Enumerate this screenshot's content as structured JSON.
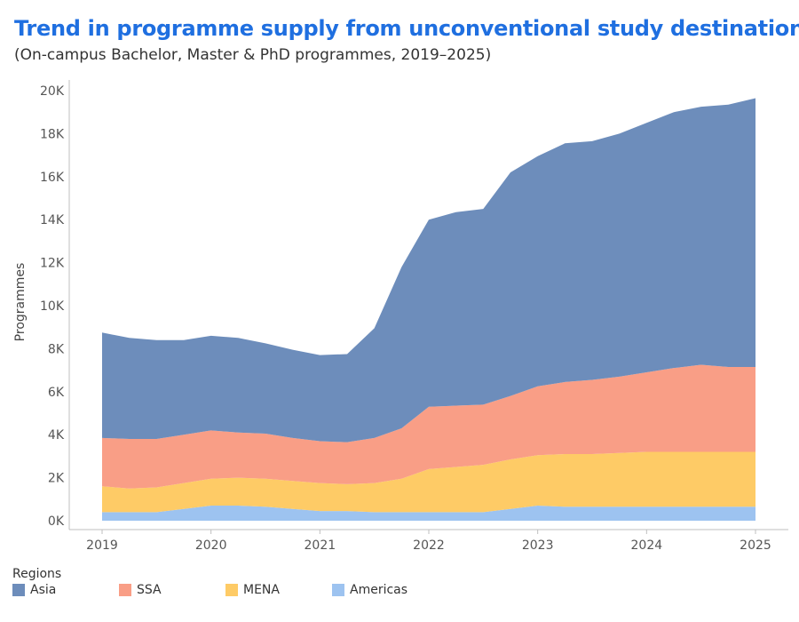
{
  "title": "Trend in programme supply from unconventional study destinations",
  "subtitle": "(On-campus Bachelor, Master & PhD programmes, 2019–2025)",
  "legend_title": "Regions",
  "chart_data": {
    "type": "area",
    "stacked": true,
    "ylabel": "Programmes",
    "ylim": [
      0,
      20000
    ],
    "yticks": [
      0,
      2000,
      4000,
      6000,
      8000,
      10000,
      12000,
      14000,
      16000,
      18000,
      20000
    ],
    "ytick_labels": [
      "0K",
      "2K",
      "4K",
      "6K",
      "8K",
      "10K",
      "12K",
      "14K",
      "16K",
      "18K",
      "20K"
    ],
    "xlim": [
      2019,
      2025
    ],
    "xticks": [
      2019,
      2020,
      2021,
      2022,
      2023,
      2024,
      2025
    ],
    "xtick_labels": [
      "2019",
      "2020",
      "2021",
      "2022",
      "2023",
      "2024",
      "2025"
    ],
    "x": [
      2019,
      2019.25,
      2019.5,
      2019.75,
      2020,
      2020.25,
      2020.5,
      2020.75,
      2021,
      2021.25,
      2021.5,
      2021.75,
      2022,
      2022.25,
      2022.5,
      2022.75,
      2023,
      2023.25,
      2023.5,
      2023.75,
      2024,
      2024.25,
      2024.5,
      2024.75,
      2025
    ],
    "series": [
      {
        "name": "Americas",
        "color": "#9dc3f0",
        "values": [
          400,
          400,
          400,
          550,
          700,
          700,
          650,
          550,
          450,
          450,
          400,
          400,
          400,
          400,
          400,
          550,
          700,
          650,
          650,
          650,
          650,
          650,
          650,
          650,
          650
        ]
      },
      {
        "name": "MENA",
        "color": "#fecb66",
        "values": [
          1200,
          1100,
          1150,
          1200,
          1250,
          1300,
          1300,
          1300,
          1300,
          1250,
          1350,
          1550,
          2000,
          2100,
          2200,
          2300,
          2350,
          2450,
          2450,
          2500,
          2550,
          2550,
          2550,
          2550,
          2550
        ]
      },
      {
        "name": "SSA",
        "color": "#f99e86",
        "values": [
          2250,
          2300,
          2250,
          2250,
          2250,
          2100,
          2100,
          2000,
          1950,
          1950,
          2100,
          2350,
          2900,
          2850,
          2800,
          2950,
          3200,
          3350,
          3450,
          3550,
          3700,
          3900,
          4050,
          3950,
          3950
        ]
      },
      {
        "name": "Asia",
        "color": "#6d8dbb",
        "values": [
          4900,
          4700,
          4600,
          4400,
          4400,
          4400,
          4200,
          4100,
          4000,
          4100,
          5100,
          7500,
          8700,
          9000,
          9100,
          10400,
          10700,
          11100,
          11100,
          11300,
          11600,
          11900,
          12000,
          12200,
          12500
        ]
      }
    ]
  }
}
